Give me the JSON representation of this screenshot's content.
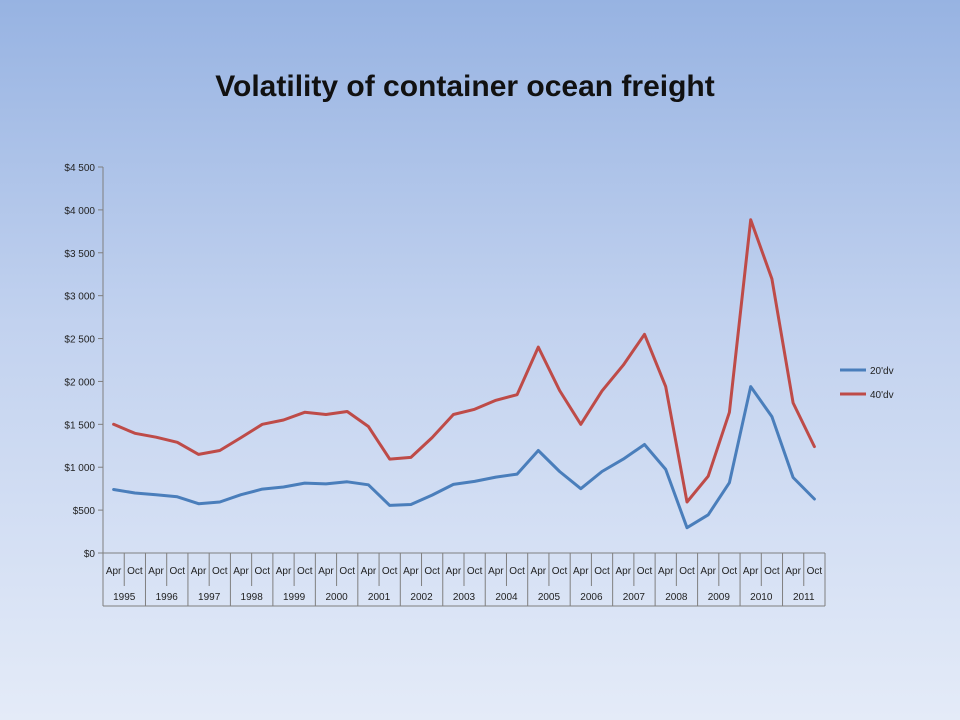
{
  "chart_data": {
    "type": "line",
    "title": "Volatility of container ocean freight",
    "xlabel": "",
    "ylabel": "",
    "ylim": [
      0,
      4500
    ],
    "yticks": [
      0,
      500,
      1000,
      1500,
      2000,
      2500,
      3000,
      3500,
      4000,
      4500
    ],
    "ytick_labels": [
      "$0",
      "$500",
      "$1 000",
      "$1 500",
      "$2 000",
      "$2 500",
      "$3 000",
      "$3 500",
      "$4 000",
      "$4 500"
    ],
    "x": [
      "Apr",
      "Oct",
      "Apr",
      "Oct",
      "Apr",
      "Oct",
      "Apr",
      "Oct",
      "Apr",
      "Oct",
      "Apr",
      "Oct",
      "Apr",
      "Oct",
      "Apr",
      "Oct",
      "Apr",
      "Oct",
      "Apr",
      "Oct",
      "Apr",
      "Oct",
      "Apr",
      "Oct",
      "Apr",
      "Oct",
      "Apr",
      "Oct",
      "Apr",
      "Oct",
      "Apr",
      "Oct",
      "Apr",
      "Oct"
    ],
    "years": [
      "1995",
      "1996",
      "1997",
      "1998",
      "1999",
      "2000",
      "2001",
      "2002",
      "2003",
      "2004",
      "2005",
      "2006",
      "2007",
      "2008",
      "2009",
      "2010",
      "2011"
    ],
    "legend_position": "right",
    "grid": false,
    "series": [
      {
        "name": "20'dv",
        "color": "#4a7ebb",
        "values": [
          740,
          700,
          680,
          655,
          575,
          595,
          680,
          745,
          770,
          815,
          805,
          830,
          795,
          555,
          565,
          675,
          800,
          835,
          885,
          920,
          1195,
          950,
          750,
          950,
          1095,
          1265,
          975,
          295,
          445,
          820,
          1940,
          1590,
          880,
          630
        ]
      },
      {
        "name": "40'dv",
        "color": "#be4b48",
        "values": [
          1500,
          1395,
          1350,
          1290,
          1150,
          1195,
          1345,
          1500,
          1550,
          1640,
          1615,
          1650,
          1475,
          1095,
          1115,
          1345,
          1615,
          1675,
          1780,
          1845,
          2400,
          1895,
          1500,
          1890,
          2190,
          2550,
          1940,
          595,
          895,
          1640,
          3885,
          3195,
          1750,
          1240
        ]
      }
    ]
  }
}
